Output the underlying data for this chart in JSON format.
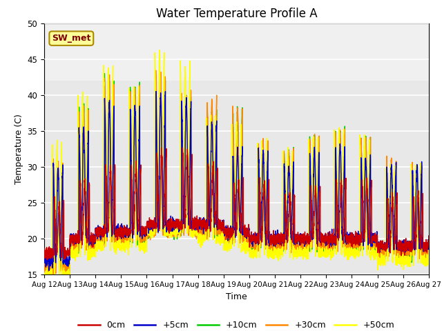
{
  "title": "Water Temperature Profile A",
  "xlabel": "Time",
  "ylabel": "Temperature (C)",
  "ylim": [
    15,
    50
  ],
  "xlim": [
    0,
    360
  ],
  "yticks": [
    15,
    20,
    25,
    30,
    35,
    40,
    45,
    50
  ],
  "xtick_labels": [
    "Aug 12",
    "Aug 13",
    "Aug 14",
    "Aug 15",
    "Aug 16",
    "Aug 17",
    "Aug 18",
    "Aug 19",
    "Aug 20",
    "Aug 21",
    "Aug 22",
    "Aug 23",
    "Aug 24",
    "Aug 25",
    "Aug 26",
    "Aug 27"
  ],
  "xtick_positions": [
    0,
    24,
    48,
    72,
    96,
    120,
    144,
    168,
    192,
    216,
    240,
    264,
    288,
    312,
    336,
    360
  ],
  "colors": {
    "0cm": "#cc0000",
    "+5cm": "#0000cc",
    "+10cm": "#00cc00",
    "+30cm": "#ff8800",
    "+50cm": "#ffff00"
  },
  "legend_labels": [
    "0cm",
    "+5cm",
    "+10cm",
    "+30cm",
    "+50cm"
  ],
  "annotation_text": "SW_met",
  "annotation_color": "#800000",
  "annotation_bg": "#ffff99",
  "annotation_border": "#aa8800",
  "shaded_region_light": [
    42,
    50
  ],
  "background_color": "#e8e8e8",
  "background_color_light": "#f0f0f0"
}
